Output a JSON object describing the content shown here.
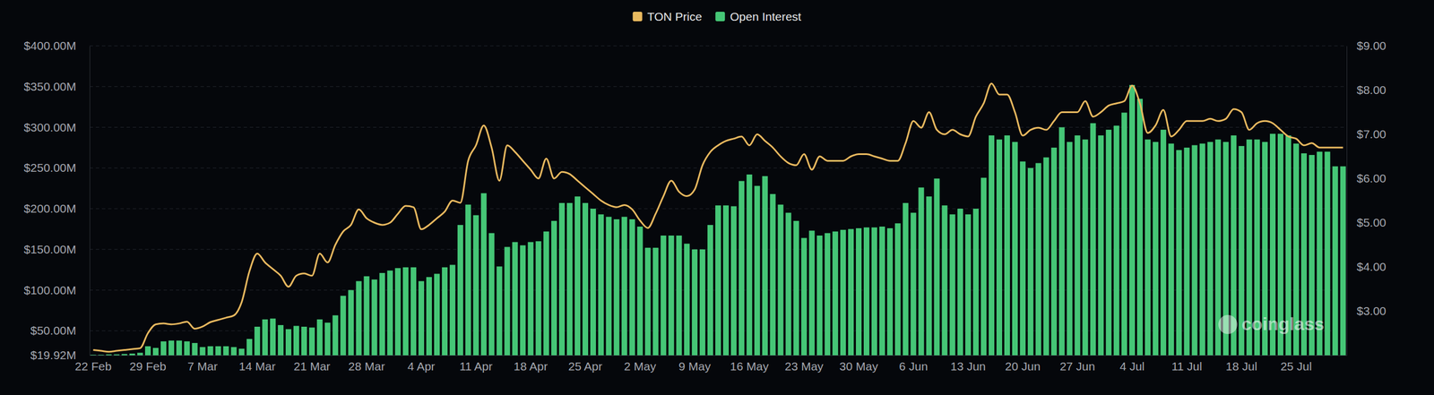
{
  "chart_data": {
    "type": "bar",
    "categories": [
      "22 Feb",
      null,
      null,
      null,
      null,
      null,
      null,
      "29 Feb",
      null,
      null,
      null,
      null,
      null,
      null,
      "7 Mar",
      null,
      null,
      null,
      null,
      null,
      null,
      "14 Mar",
      null,
      null,
      null,
      null,
      null,
      null,
      "21 Mar",
      null,
      null,
      null,
      null,
      null,
      null,
      "28 Mar",
      null,
      null,
      null,
      null,
      null,
      null,
      "4 Apr",
      null,
      null,
      null,
      null,
      null,
      null,
      "11 Apr",
      null,
      null,
      null,
      null,
      null,
      null,
      "18 Apr",
      null,
      null,
      null,
      null,
      null,
      null,
      "25 Apr",
      null,
      null,
      null,
      null,
      null,
      null,
      "2 May",
      null,
      null,
      null,
      null,
      null,
      null,
      "9 May",
      null,
      null,
      null,
      null,
      null,
      null,
      "16 May",
      null,
      null,
      null,
      null,
      null,
      null,
      "23 May",
      null,
      null,
      null,
      null,
      null,
      null,
      "30 May",
      null,
      null,
      null,
      null,
      null,
      null,
      "6 Jun",
      null,
      null,
      null,
      null,
      null,
      null,
      "13 Jun",
      null,
      null,
      null,
      null,
      null,
      null,
      "20 Jun",
      null,
      null,
      null,
      null,
      null,
      null,
      "27 Jun",
      null,
      null,
      null,
      null,
      null,
      null,
      "4 Jul",
      null,
      null,
      null,
      null,
      null,
      null,
      "11 Jul",
      null,
      null,
      null,
      null,
      null,
      null,
      "18 Jul",
      null,
      null,
      null,
      null,
      null,
      null,
      "25 Jul",
      null,
      null,
      null,
      null,
      null,
      null
    ],
    "series": [
      {
        "name": "TON Price",
        "type": "line",
        "axis": "y2",
        "color": "#e9b95f",
        "values": [
          2.12,
          2.1,
          2.08,
          2.1,
          2.12,
          2.14,
          2.16,
          2.5,
          2.7,
          2.72,
          2.7,
          2.72,
          2.76,
          2.6,
          2.65,
          2.75,
          2.8,
          2.85,
          2.9,
          3.2,
          3.9,
          4.3,
          4.1,
          3.95,
          3.8,
          3.55,
          3.8,
          3.85,
          3.8,
          4.3,
          4.1,
          4.5,
          4.8,
          4.95,
          5.3,
          5.1,
          5.0,
          4.95,
          5.0,
          5.2,
          5.38,
          5.35,
          4.85,
          4.95,
          5.1,
          5.25,
          5.5,
          5.45,
          6.4,
          6.75,
          7.2,
          6.7,
          5.95,
          6.75,
          6.6,
          6.4,
          6.2,
          6.0,
          6.45,
          6.0,
          6.15,
          6.1,
          5.95,
          5.8,
          5.65,
          5.5,
          5.4,
          5.35,
          5.4,
          5.3,
          5.05,
          4.88,
          5.2,
          5.6,
          5.95,
          5.7,
          5.6,
          5.75,
          6.3,
          6.6,
          6.75,
          6.85,
          6.9,
          6.95,
          6.75,
          7.0,
          6.85,
          6.7,
          6.5,
          6.35,
          6.3,
          6.55,
          6.2,
          6.5,
          6.4,
          6.4,
          6.4,
          6.5,
          6.55,
          6.55,
          6.5,
          6.45,
          6.4,
          6.4,
          6.8,
          7.3,
          7.15,
          7.5,
          7.1,
          7.0,
          7.1,
          7.0,
          6.95,
          7.4,
          7.7,
          8.15,
          7.9,
          7.9,
          7.5,
          6.97,
          7.1,
          7.15,
          7.1,
          7.3,
          7.5,
          7.5,
          7.5,
          7.75,
          7.4,
          7.5,
          7.65,
          7.7,
          7.75,
          8.1,
          7.7,
          7.03,
          7.2,
          7.55,
          6.95,
          7.1,
          7.3,
          7.3,
          7.3,
          7.35,
          7.3,
          7.35,
          7.57,
          7.5,
          7.1,
          7.25,
          7.3,
          7.25,
          7.1,
          6.95,
          6.9,
          6.75,
          6.8,
          6.7,
          6.7,
          6.7,
          6.7
        ]
      },
      {
        "name": "Open Interest",
        "type": "bar",
        "color": "#45c676",
        "values": [
          20.5,
          20.5,
          21,
          21,
          21.5,
          22,
          23,
          31,
          29,
          37,
          38,
          38,
          37,
          35,
          30,
          31,
          31,
          31,
          30,
          28,
          40,
          55,
          64,
          65,
          57,
          52,
          56,
          55,
          54,
          64,
          60,
          69,
          93,
          100,
          111,
          117,
          113,
          121,
          124,
          127,
          128,
          128,
          111,
          116,
          120,
          128,
          131,
          180,
          205,
          192,
          219,
          170,
          129,
          153,
          159,
          155,
          159,
          160,
          172,
          185,
          207,
          207,
          215,
          207,
          200,
          193,
          190,
          187,
          190,
          187,
          178,
          152,
          152,
          167,
          167,
          167,
          157,
          150,
          150,
          180,
          204,
          204,
          203,
          234,
          242,
          228,
          240,
          218,
          205,
          195,
          185,
          164,
          173,
          167,
          170,
          172,
          174,
          175,
          176,
          177,
          177,
          178,
          176,
          182,
          207,
          195,
          226,
          215,
          237,
          204,
          193,
          200,
          193,
          200,
          238,
          290,
          285,
          290,
          282,
          258,
          250,
          256,
          263,
          275,
          300,
          282,
          290,
          285,
          305,
          290,
          297,
          302,
          318,
          352,
          335,
          285,
          282,
          297,
          280,
          272,
          275,
          278,
          280,
          282,
          285,
          282,
          290,
          277,
          285,
          285,
          282,
          292,
          292,
          290,
          280,
          268,
          266,
          270,
          270,
          252,
          252
        ]
      }
    ],
    "ylim": [
      19.92,
      400
    ],
    "yticks": [
      {
        "value": 19.92,
        "label": "$19.92M"
      },
      {
        "value": 50,
        "label": "$50.00M"
      },
      {
        "value": 100,
        "label": "$100.00M"
      },
      {
        "value": 150,
        "label": "$150.00M"
      },
      {
        "value": 200,
        "label": "$200.00M"
      },
      {
        "value": 250,
        "label": "$250.00M"
      },
      {
        "value": 300,
        "label": "$300.00M"
      },
      {
        "value": 350,
        "label": "$350.00M"
      },
      {
        "value": 400,
        "label": "$400.00M"
      }
    ],
    "y2lim": [
      2.0,
      9.0
    ],
    "y2ticks": [
      {
        "value": 3,
        "label": "$3.00"
      },
      {
        "value": 4,
        "label": "$4.00"
      },
      {
        "value": 5,
        "label": "$5.00"
      },
      {
        "value": 6,
        "label": "$6.00"
      },
      {
        "value": 7,
        "label": "$7.00"
      },
      {
        "value": 8,
        "label": "$8.00"
      },
      {
        "value": 9,
        "label": "$9.00"
      }
    ],
    "grid": true,
    "legend": "top",
    "annotations": [
      "coinglass"
    ]
  }
}
